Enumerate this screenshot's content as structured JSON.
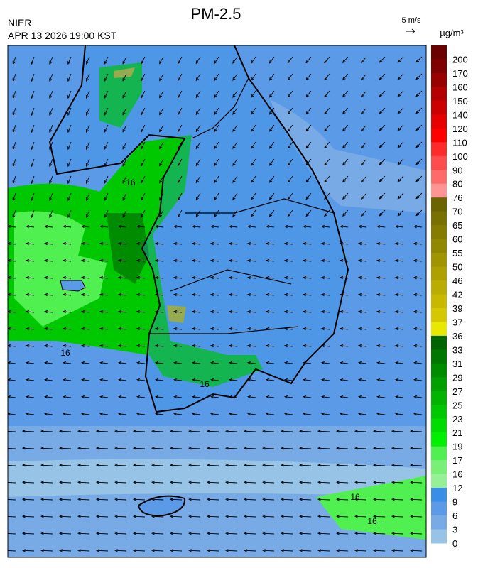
{
  "header": {
    "title": "PM-2.5",
    "agency": "NIER",
    "datetime": "APR 13 2026 19:00 KST",
    "vector_scale": "5 m/s",
    "unit": "µg/m³"
  },
  "legend": {
    "labels": [
      "200",
      "170",
      "160",
      "150",
      "140",
      "120",
      "110",
      "100",
      "90",
      "80",
      "76",
      "70",
      "65",
      "60",
      "55",
      "50",
      "46",
      "42",
      "39",
      "37",
      "36",
      "33",
      "31",
      "29",
      "27",
      "25",
      "23",
      "21",
      "19",
      "17",
      "16",
      "12",
      "9",
      "6",
      "3",
      "0"
    ],
    "colors": [
      "#6b0000",
      "#7f0000",
      "#990000",
      "#b30000",
      "#cc0000",
      "#e60000",
      "#ff0000",
      "#ff2a2a",
      "#ff4d4d",
      "#ff6b6b",
      "#ff9494",
      "#6b6400",
      "#787000",
      "#857c00",
      "#928800",
      "#a09400",
      "#ada000",
      "#baac00",
      "#c8b800",
      "#d5c800",
      "#e8e800",
      "#006400",
      "#007800",
      "#008c00",
      "#00a000",
      "#00b400",
      "#00c800",
      "#00dc00",
      "#00f000",
      "#50f050",
      "#78f078",
      "#96f096",
      "#3a8ee6",
      "#5a9ae6",
      "#78aae6",
      "#96c3e6"
    ]
  },
  "contour_labels": [
    "16",
    "16",
    "16",
    "16",
    "16"
  ]
}
